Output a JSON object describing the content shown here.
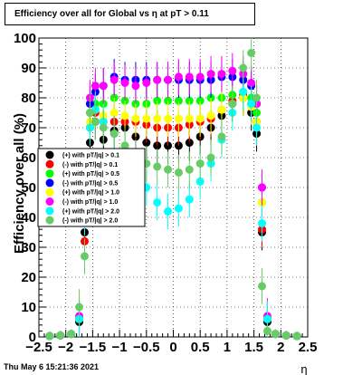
{
  "title": "Efficiency over all for Global vs   η at pT > 0.11",
  "timestamp": "Thu May  6 15:21:36 2021",
  "chart_data": {
    "type": "scatter",
    "title": "Efficiency over all for Global vs   η at pT > 0.11",
    "xlabel": "η",
    "ylabel": "Efficiency over all (%)",
    "xlim": [
      -2.5,
      2.5
    ],
    "ylim": [
      0,
      100
    ],
    "x_ticks": [
      "−2.5",
      "−2",
      "−1.5",
      "−1",
      "−0.5",
      "0",
      "0.5",
      "1",
      "1.5",
      "2",
      "2.5"
    ],
    "y_ticks": [
      "0",
      "10",
      "20",
      "30",
      "40",
      "50",
      "60",
      "70",
      "80",
      "90",
      "100"
    ],
    "grid": true,
    "legend_position": "left-middle",
    "series": [
      {
        "name": "(+) with pT/|q| > 0.1",
        "color": "#000000",
        "x": [
          -2.3,
          -2.1,
          -1.9,
          -1.75,
          -1.65,
          -1.55,
          -1.45,
          -1.3,
          -1.1,
          -0.9,
          -0.7,
          -0.5,
          -0.3,
          -0.1,
          0.1,
          0.3,
          0.5,
          0.7,
          0.9,
          1.1,
          1.3,
          1.45,
          1.55,
          1.65,
          1.75,
          1.9,
          2.1,
          2.3
        ],
        "y": [
          0.3,
          0.5,
          1,
          5,
          35,
          65,
          72,
          66,
          69,
          70,
          67,
          65,
          64,
          64,
          64,
          65,
          67,
          70,
          74,
          78,
          80,
          75,
          68,
          35,
          5,
          1,
          0.5,
          0.3
        ]
      },
      {
        "name": "(-) with pT/|q| > 0.1",
        "color": "#ff0000",
        "x": [
          -2.3,
          -2.1,
          -1.9,
          -1.75,
          -1.65,
          -1.55,
          -1.45,
          -1.3,
          -1.1,
          -0.9,
          -0.7,
          -0.5,
          -0.3,
          -0.1,
          0.1,
          0.3,
          0.5,
          0.7,
          0.9,
          1.1,
          1.3,
          1.45,
          1.55,
          1.65,
          1.75,
          1.9,
          2.1,
          2.3
        ],
        "y": [
          0.3,
          0.5,
          1,
          6,
          32,
          70,
          75,
          72,
          72,
          72,
          72,
          71,
          70,
          70,
          70,
          71,
          72,
          73,
          76,
          79,
          81,
          78,
          72,
          36,
          6,
          1,
          0.5,
          0.3
        ]
      },
      {
        "name": "(+) with pT/|q| > 0.5",
        "color": "#00ff00",
        "x": [
          -2.3,
          -2.1,
          -1.9,
          -1.75,
          -1.65,
          -1.55,
          -1.45,
          -1.3,
          -1.1,
          -0.9,
          -0.7,
          -0.5,
          -0.3,
          -0.1,
          0.1,
          0.3,
          0.5,
          0.7,
          0.9,
          1.1,
          1.3,
          1.45,
          1.55,
          1.65,
          1.75,
          1.9,
          2.1,
          2.3
        ],
        "y": [
          0.3,
          0.5,
          1,
          6,
          45,
          75,
          78,
          78,
          80,
          79,
          78,
          78,
          79,
          79,
          79,
          79,
          79,
          80,
          80,
          81,
          82,
          80,
          75,
          45,
          6,
          1,
          0.5,
          0.3
        ]
      },
      {
        "name": "(-) with pT/|q| > 0.5",
        "color": "#0000ff",
        "x": [
          -2.3,
          -2.1,
          -1.9,
          -1.75,
          -1.65,
          -1.55,
          -1.45,
          -1.3,
          -1.1,
          -0.9,
          -0.7,
          -0.5,
          -0.3,
          -0.1,
          0.1,
          0.3,
          0.5,
          0.7,
          0.9,
          1.1,
          1.3,
          1.45,
          1.55,
          1.65,
          1.75,
          1.9,
          2.1,
          2.3
        ],
        "y": [
          0.3,
          0.5,
          1,
          6,
          50,
          78,
          82,
          84,
          87,
          86,
          86,
          86,
          86,
          86,
          86,
          86,
          86,
          86,
          87,
          87,
          86,
          84,
          78,
          50,
          6,
          1,
          0.5,
          0.3
        ]
      },
      {
        "name": "(+) with pT/|q| > 1.0",
        "color": "#ffff00",
        "x": [
          -2.3,
          -2.1,
          -1.9,
          -1.75,
          -1.65,
          -1.55,
          -1.45,
          -1.3,
          -1.1,
          -0.9,
          -0.7,
          -0.5,
          -0.3,
          -0.1,
          0.1,
          0.3,
          0.5,
          0.7,
          0.9,
          1.1,
          1.3,
          1.45,
          1.55,
          1.65,
          1.75,
          1.9,
          2.1,
          2.3
        ],
        "y": [
          0.3,
          0.5,
          1,
          6,
          46,
          72,
          76,
          74,
          75,
          74,
          73,
          73,
          73,
          73,
          73,
          73,
          73,
          74,
          76,
          78,
          80,
          77,
          72,
          45,
          6,
          1,
          0.5,
          0.3
        ]
      },
      {
        "name": "(-) with pT/|q| > 1.0",
        "color": "#ff00ff",
        "x": [
          -2.3,
          -2.1,
          -1.9,
          -1.75,
          -1.65,
          -1.55,
          -1.45,
          -1.3,
          -1.1,
          -0.9,
          -0.7,
          -0.5,
          -0.3,
          -0.1,
          0.1,
          0.3,
          0.5,
          0.7,
          0.9,
          1.1,
          1.3,
          1.45,
          1.55,
          1.65,
          1.75,
          1.9,
          2.1,
          2.3
        ],
        "y": [
          0.3,
          0.5,
          1,
          7,
          52,
          80,
          84,
          84,
          86,
          85,
          84,
          85,
          86,
          86,
          87,
          87,
          87,
          88,
          88,
          89,
          88,
          85,
          78,
          50,
          7,
          1,
          0.5,
          0.3
        ]
      },
      {
        "name": "(+) with pT/|q| > 2.0",
        "color": "#00ffff",
        "x": [
          -2.3,
          -2.1,
          -1.9,
          -1.75,
          -1.65,
          -1.55,
          -1.45,
          -1.3,
          -1.1,
          -0.9,
          -0.7,
          -0.5,
          -0.3,
          -0.1,
          0.1,
          0.3,
          0.5,
          0.7,
          0.9,
          1.1,
          1.3,
          1.45,
          1.55,
          1.65,
          1.75,
          1.9,
          2.1,
          2.3
        ],
        "y": [
          0.3,
          0.5,
          1,
          6,
          40,
          70,
          76,
          72,
          68,
          62,
          55,
          50,
          45,
          42,
          43,
          46,
          52,
          58,
          66,
          75,
          82,
          78,
          70,
          38,
          6,
          1,
          0.5,
          0.3
        ]
      },
      {
        "name": "(-) with pT/|q| > 2.0",
        "color": "#66cc66",
        "x": [
          -2.3,
          -2.1,
          -1.9,
          -1.75,
          -1.65,
          -1.55,
          -1.45,
          -1.3,
          -1.1,
          -0.9,
          -0.7,
          -0.5,
          -0.3,
          -0.1,
          0.1,
          0.3,
          0.5,
          0.7,
          0.9,
          1.1,
          1.3,
          1.45,
          1.55,
          1.65,
          1.75,
          1.9,
          2.1,
          2.3
        ],
        "y": [
          0.3,
          0.5,
          1,
          10,
          27,
          75,
          72,
          70,
          68,
          64,
          60,
          58,
          57,
          56,
          55,
          56,
          58,
          60,
          67,
          78,
          90,
          95,
          80,
          17,
          2,
          1,
          0.5,
          0.3
        ]
      }
    ]
  }
}
